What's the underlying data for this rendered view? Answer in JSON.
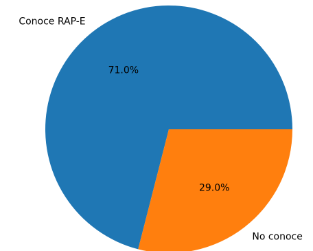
{
  "chart_data": {
    "type": "pie",
    "slices": [
      {
        "label": "Conoce RAP-E",
        "value": 71.0,
        "pct_label": "71.0%",
        "color": "#1f77b4"
      },
      {
        "label": "No conoce",
        "value": 29.0,
        "pct_label": "29.0%",
        "color": "#ff7f0e"
      }
    ],
    "legend": "none"
  }
}
